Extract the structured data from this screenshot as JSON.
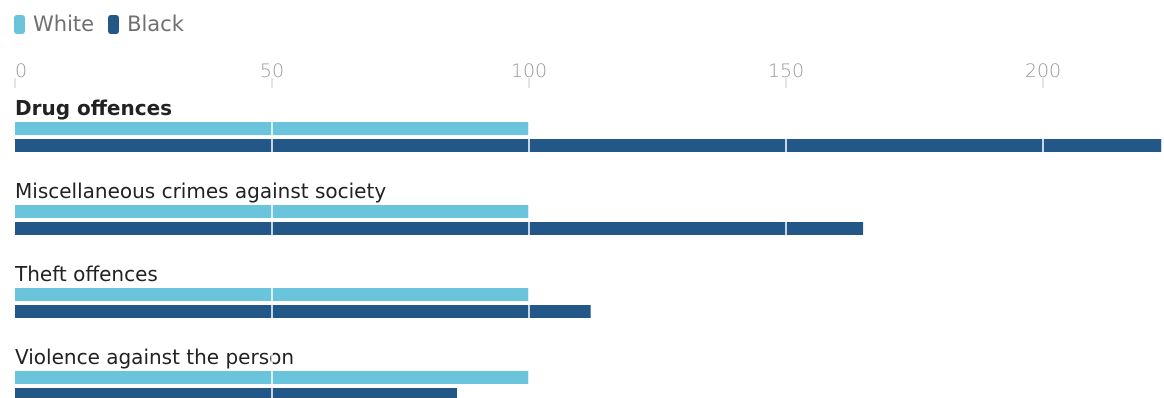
{
  "chart_data": {
    "type": "bar",
    "orientation": "horizontal",
    "categories": [
      "Drug offences",
      "Miscellaneous crimes against society",
      "Theft offences",
      "Violence against the person"
    ],
    "series": [
      {
        "name": "White",
        "values": [
          100,
          100,
          100,
          100
        ]
      },
      {
        "name": "Black",
        "values": [
          223,
          165,
          112,
          86
        ]
      }
    ],
    "x_ticks": [
      "0",
      "50",
      "100",
      "150",
      "200"
    ],
    "xlim": [
      0,
      227
    ],
    "grid": true,
    "legend_position": "top-left",
    "highlighted_category": "Drug offences",
    "colors": {
      "White": "#6ac4dc",
      "Black": "#235788",
      "tick_text": "#9a9a9a",
      "category_text": "#222222",
      "gridline": "#ffffff",
      "tick_mark": "#c9c9c9"
    }
  }
}
